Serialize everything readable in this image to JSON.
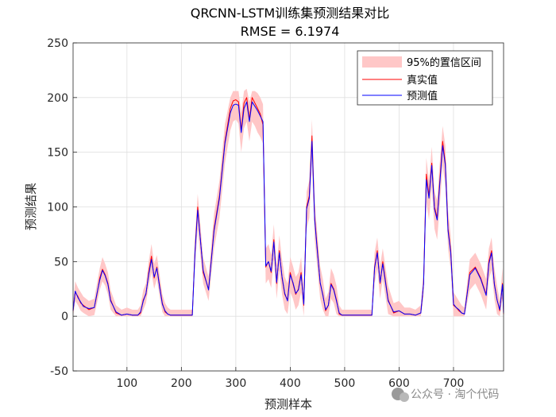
{
  "chart_data": {
    "type": "line",
    "title": "QRCNN-LSTM训练集预测结果对比",
    "subtitle": "RMSE = 6.1974",
    "xlabel": "预测样本",
    "ylabel": "预测结果",
    "xlim": [
      1,
      792
    ],
    "ylim": [
      -50,
      250
    ],
    "xticks": [
      100,
      200,
      300,
      400,
      500,
      600,
      700
    ],
    "yticks": [
      -50,
      0,
      50,
      100,
      150,
      200,
      250
    ],
    "grid": true,
    "legend_position": "top-right",
    "colors": {
      "band": "#ffc7c7",
      "actual": "#ff0000",
      "predicted": "#0000ff"
    },
    "series": [
      {
        "name": "95%的置信区间",
        "kind": "band"
      },
      {
        "name": "真实值",
        "kind": "line"
      },
      {
        "name": "预测值",
        "kind": "line"
      }
    ],
    "x": [
      1,
      5,
      10,
      15,
      20,
      30,
      40,
      45,
      50,
      55,
      60,
      65,
      70,
      80,
      90,
      100,
      110,
      120,
      125,
      130,
      135,
      140,
      145,
      150,
      155,
      160,
      165,
      170,
      175,
      180,
      190,
      200,
      210,
      220,
      225,
      230,
      240,
      250,
      260,
      270,
      280,
      290,
      295,
      300,
      305,
      310,
      315,
      320,
      325,
      330,
      335,
      340,
      345,
      350,
      355,
      360,
      365,
      370,
      375,
      380,
      385,
      390,
      395,
      400,
      405,
      410,
      415,
      420,
      425,
      430,
      435,
      440,
      445,
      450,
      455,
      460,
      465,
      470,
      475,
      480,
      485,
      490,
      495,
      500,
      510,
      520,
      530,
      540,
      550,
      555,
      560,
      565,
      570,
      580,
      590,
      600,
      610,
      620,
      630,
      640,
      645,
      650,
      655,
      660,
      665,
      670,
      675,
      680,
      685,
      690,
      695,
      700,
      705,
      710,
      715,
      720,
      730,
      740,
      750,
      760,
      765,
      770,
      775,
      780,
      785,
      790,
      792
    ],
    "actual": [
      5,
      22,
      18,
      12,
      10,
      6,
      8,
      20,
      35,
      43,
      38,
      30,
      15,
      3,
      1,
      2,
      1,
      1,
      3,
      15,
      20,
      40,
      55,
      35,
      45,
      28,
      12,
      4,
      2,
      1,
      1,
      1,
      1,
      1,
      60,
      100,
      40,
      25,
      80,
      110,
      160,
      190,
      197,
      198,
      196,
      170,
      195,
      200,
      180,
      200,
      195,
      190,
      185,
      175,
      45,
      50,
      40,
      70,
      30,
      60,
      35,
      20,
      15,
      40,
      30,
      20,
      25,
      40,
      10,
      100,
      110,
      165,
      90,
      60,
      30,
      20,
      5,
      10,
      30,
      25,
      15,
      2,
      1,
      1,
      1,
      1,
      1,
      1,
      1,
      45,
      60,
      30,
      50,
      15,
      3,
      5,
      2,
      2,
      1,
      3,
      30,
      130,
      110,
      140,
      100,
      90,
      125,
      160,
      140,
      80,
      60,
      10,
      8,
      5,
      3,
      2,
      40,
      45,
      35,
      20,
      50,
      60,
      30,
      15,
      5,
      30,
      2
    ],
    "predicted": [
      5,
      23,
      17,
      13,
      9,
      7,
      8,
      21,
      33,
      42,
      37,
      29,
      14,
      4,
      1,
      2,
      1,
      1,
      4,
      14,
      21,
      38,
      52,
      36,
      44,
      27,
      11,
      5,
      2,
      1,
      1,
      1,
      1,
      1,
      58,
      97,
      42,
      24,
      78,
      108,
      158,
      186,
      193,
      194,
      193,
      168,
      190,
      196,
      178,
      196,
      192,
      188,
      183,
      178,
      46,
      50,
      41,
      68,
      31,
      58,
      36,
      21,
      14,
      38,
      31,
      21,
      24,
      38,
      11,
      98,
      108,
      160,
      88,
      58,
      31,
      19,
      6,
      10,
      29,
      24,
      14,
      3,
      1,
      1,
      1,
      1,
      1,
      1,
      1,
      44,
      58,
      31,
      48,
      14,
      4,
      5,
      2,
      2,
      1,
      3,
      30,
      125,
      108,
      138,
      98,
      88,
      122,
      156,
      138,
      78,
      58,
      11,
      8,
      6,
      3,
      2,
      38,
      44,
      34,
      19,
      48,
      58,
      29,
      15,
      6,
      29,
      3
    ],
    "band_lower": [
      0,
      14,
      10,
      5,
      3,
      0,
      1,
      12,
      24,
      32,
      28,
      20,
      6,
      0,
      0,
      0,
      0,
      0,
      0,
      6,
      12,
      28,
      40,
      25,
      34,
      18,
      4,
      0,
      0,
      0,
      0,
      0,
      0,
      0,
      45,
      80,
      30,
      14,
      62,
      90,
      140,
      170,
      178,
      180,
      176,
      150,
      172,
      178,
      160,
      178,
      174,
      168,
      164,
      158,
      30,
      34,
      26,
      52,
      16,
      42,
      20,
      6,
      2,
      22,
      16,
      6,
      10,
      22,
      0,
      80,
      90,
      140,
      70,
      42,
      16,
      6,
      0,
      0,
      16,
      12,
      2,
      0,
      0,
      0,
      0,
      0,
      0,
      0,
      0,
      30,
      44,
      16,
      34,
      2,
      0,
      0,
      0,
      0,
      0,
      0,
      18,
      105,
      88,
      118,
      80,
      70,
      102,
      138,
      118,
      62,
      42,
      0,
      0,
      0,
      0,
      0,
      24,
      30,
      20,
      6,
      34,
      42,
      16,
      2,
      0,
      16,
      0
    ],
    "band_upper": [
      12,
      32,
      26,
      22,
      18,
      14,
      16,
      30,
      44,
      54,
      48,
      40,
      24,
      10,
      6,
      8,
      6,
      6,
      10,
      24,
      30,
      50,
      66,
      48,
      56,
      38,
      20,
      12,
      8,
      6,
      6,
      6,
      6,
      6,
      72,
      112,
      54,
      36,
      94,
      124,
      176,
      200,
      206,
      206,
      206,
      186,
      206,
      208,
      196,
      206,
      206,
      204,
      200,
      194,
      62,
      66,
      56,
      84,
      46,
      74,
      52,
      36,
      30,
      54,
      46,
      36,
      40,
      54,
      24,
      114,
      124,
      180,
      104,
      74,
      46,
      34,
      16,
      22,
      44,
      38,
      28,
      10,
      6,
      6,
      6,
      6,
      6,
      6,
      6,
      58,
      72,
      46,
      62,
      28,
      12,
      14,
      8,
      8,
      6,
      10,
      42,
      145,
      124,
      155,
      114,
      106,
      142,
      174,
      156,
      96,
      74,
      22,
      18,
      14,
      10,
      8,
      52,
      58,
      48,
      34,
      62,
      72,
      44,
      28,
      14,
      44,
      10
    ]
  },
  "watermark": "公众号 · 淘个代码"
}
